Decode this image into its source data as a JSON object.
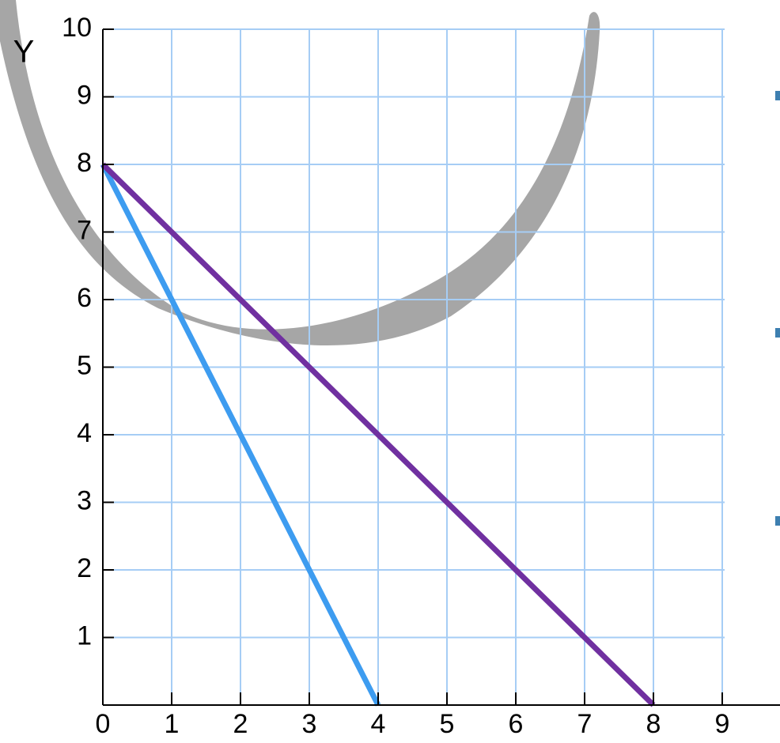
{
  "chart_data": {
    "type": "line",
    "y_label": "Y",
    "xlim": [
      0,
      9
    ],
    "ylim": [
      0,
      10
    ],
    "xticks": [
      0,
      1,
      2,
      3,
      4,
      5,
      6,
      7,
      8,
      9
    ],
    "yticks": [
      1,
      2,
      3,
      4,
      5,
      6,
      7,
      8,
      9,
      10
    ],
    "grid": true,
    "series": [
      {
        "color": "#3d9cf0",
        "x": [
          0,
          4
        ],
        "values": [
          8,
          0
        ]
      },
      {
        "color": "#7030a0",
        "x": [
          0,
          8
        ],
        "values": [
          8,
          0
        ]
      }
    ]
  }
}
